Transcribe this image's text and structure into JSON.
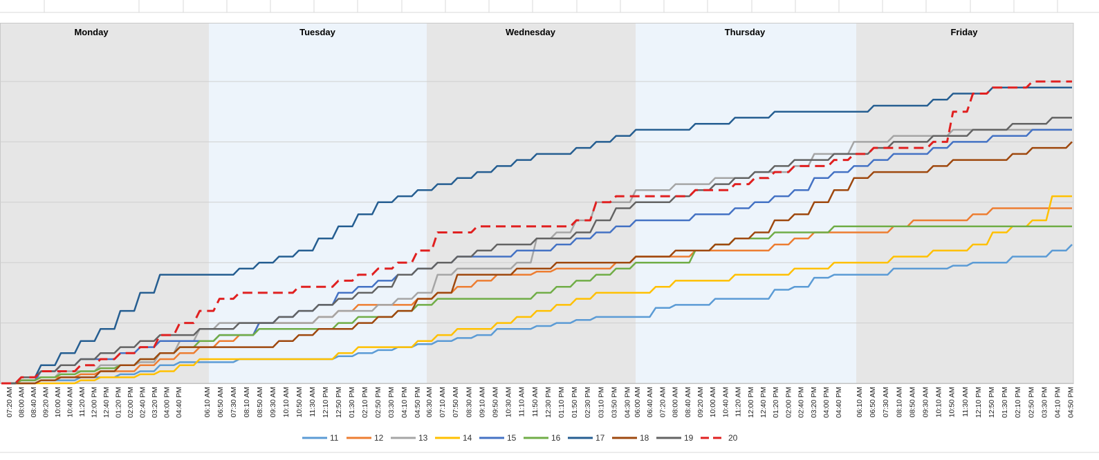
{
  "chart_data": {
    "type": "line",
    "title": "",
    "xlabel": "",
    "ylabel": "",
    "grid": true,
    "legend_position": "bottom",
    "ylim": [
      0,
      50
    ],
    "ygrid_step": 10,
    "days": [
      "Monday",
      "Tuesday",
      "Wednesday",
      "Thursday",
      "Friday"
    ],
    "day_colors": [
      "#e6e6e6",
      "#edf4fb",
      "#e6e6e6",
      "#edf4fb",
      "#e6e6e6"
    ],
    "x_ticks": [
      [
        "07:20 AM",
        "08:00 AM",
        "08:40 AM",
        "09:20 AM",
        "10:00 AM",
        "10:40 AM",
        "11:20 AM",
        "12:00 PM",
        "12:40 PM",
        "01:20 PM",
        "02:00 PM",
        "02:40 PM",
        "03:20 PM",
        "04:00 PM",
        "04:40 PM"
      ],
      [
        "06:10 AM",
        "06:50 AM",
        "07:30 AM",
        "08:10 AM",
        "08:50 AM",
        "09:30 AM",
        "10:10 AM",
        "10:50 AM",
        "11:30 AM",
        "12:10 PM",
        "12:50 PM",
        "01:30 PM",
        "02:10 PM",
        "02:50 PM",
        "03:30 PM",
        "04:10 PM",
        "04:50 PM"
      ],
      [
        "06:30 AM",
        "07:10 AM",
        "07:50 AM",
        "08:30 AM",
        "09:10 AM",
        "09:50 AM",
        "10:30 AM",
        "11:10 AM",
        "11:50 AM",
        "12:30 PM",
        "01:10 PM",
        "01:50 PM",
        "02:30 PM",
        "03:10 PM",
        "03:50 PM",
        "04:30 PM"
      ],
      [
        "06:00 AM",
        "06:40 AM",
        "07:20 AM",
        "08:00 AM",
        "08:40 AM",
        "09:20 AM",
        "10:00 AM",
        "10:40 AM",
        "11:20 AM",
        "12:00 PM",
        "12:40 PM",
        "01:20 PM",
        "02:00 PM",
        "02:40 PM",
        "03:20 PM",
        "04:00 PM",
        "04:40 PM"
      ],
      [
        "06:10 AM",
        "06:50 AM",
        "07:30 AM",
        "08:10 AM",
        "08:50 AM",
        "09:30 AM",
        "10:10 AM",
        "10:50 AM",
        "11:30 AM",
        "12:10 PM",
        "12:50 PM",
        "01:30 PM",
        "02:10 PM",
        "02:50 PM",
        "03:30 PM",
        "04:10 PM",
        "04:50 PM"
      ]
    ],
    "series": [
      {
        "name": "11",
        "color": "#5b9bd5",
        "dash": false,
        "values": [
          0,
          0,
          0.5,
          0.5,
          1,
          1,
          1.5,
          2,
          3,
          3.5,
          3.5,
          3.5,
          4,
          4,
          4,
          4,
          4,
          4.5,
          5,
          5.5,
          6,
          6.5,
          7,
          7.5,
          8,
          9,
          9,
          9.5,
          10,
          10.5,
          11,
          11,
          11,
          12.5,
          13,
          13,
          14,
          14,
          14,
          15.5,
          16,
          17.5,
          18,
          18,
          18,
          19,
          19,
          19,
          19.5,
          20,
          20,
          21,
          21,
          22,
          23
        ]
      },
      {
        "name": "12",
        "color": "#ed7d31",
        "dash": false,
        "values": [
          0,
          0.5,
          1,
          1,
          1.5,
          2,
          2,
          3,
          4,
          5,
          6,
          7,
          8,
          10,
          10,
          10,
          11,
          12,
          13,
          13,
          13,
          14,
          15,
          16,
          17,
          18,
          18,
          18.5,
          19,
          19,
          19,
          20,
          21,
          21,
          21,
          22,
          22,
          22,
          22,
          23,
          24,
          25,
          25,
          25,
          25,
          26,
          27,
          27,
          27,
          28,
          29,
          29,
          29,
          29,
          29
        ]
      },
      {
        "name": "13",
        "color": "#a5a5a5",
        "dash": false,
        "values": [
          0,
          1,
          1,
          2,
          2,
          3,
          3,
          3.5,
          5,
          7,
          9,
          10,
          10,
          10,
          10,
          10,
          11,
          12,
          12,
          13,
          14,
          15,
          18,
          19,
          19,
          19,
          20,
          24,
          25,
          27,
          30,
          30,
          32,
          32,
          33,
          33,
          34,
          34,
          35,
          35,
          36,
          38,
          38,
          40,
          40,
          41,
          41,
          41,
          42,
          42,
          42,
          42,
          42,
          42,
          42
        ]
      },
      {
        "name": "14",
        "color": "#ffc000",
        "dash": false,
        "values": [
          0,
          0,
          0,
          0,
          0.5,
          1,
          1,
          1.5,
          2,
          3,
          4,
          4,
          4,
          4,
          4,
          4,
          4,
          5,
          6,
          6,
          6,
          7,
          8,
          9,
          9,
          10,
          11,
          12,
          13,
          14,
          15,
          15,
          15,
          16,
          17,
          17,
          17,
          18,
          18,
          18,
          19,
          19,
          20,
          20,
          20,
          21,
          21,
          22,
          22,
          23,
          25,
          26,
          27,
          31,
          31
        ]
      },
      {
        "name": "15",
        "color": "#4472c4",
        "dash": false,
        "values": [
          0,
          0.5,
          2,
          3,
          4,
          4,
          5,
          6,
          7,
          7,
          7,
          8,
          8,
          10,
          11,
          12,
          13,
          15,
          16,
          17,
          18,
          19,
          20,
          21,
          21,
          21,
          22,
          22,
          23,
          24,
          25,
          26,
          27,
          27,
          27,
          28,
          28,
          29,
          30,
          31,
          32,
          34,
          35,
          36,
          37,
          38,
          38,
          39,
          40,
          40,
          41,
          41,
          42,
          42,
          42
        ]
      },
      {
        "name": "16",
        "color": "#70ad47",
        "dash": false,
        "values": [
          0,
          0.5,
          1,
          1.5,
          2,
          2.5,
          3,
          4,
          5,
          6,
          7,
          8,
          8,
          9,
          9,
          9,
          9,
          10,
          11,
          11,
          12,
          13,
          14,
          14,
          14,
          14,
          14,
          15,
          16,
          17,
          18,
          19,
          20,
          20,
          20,
          22,
          23,
          24,
          24,
          25,
          25,
          25,
          26,
          26,
          26,
          26,
          26,
          26,
          26,
          26,
          26,
          26,
          26,
          26,
          26
        ]
      },
      {
        "name": "17",
        "color": "#255e91",
        "dash": false,
        "values": [
          0,
          1,
          3,
          5,
          7,
          9,
          12,
          15,
          18,
          18,
          18,
          18,
          19,
          20,
          21,
          22,
          24,
          26,
          28,
          30,
          31,
          32,
          33,
          34,
          35,
          36,
          37,
          38,
          38,
          39,
          40,
          41,
          42,
          42,
          42,
          43,
          43,
          44,
          44,
          45,
          45,
          45,
          45,
          45,
          46,
          46,
          46,
          47,
          48,
          48,
          49,
          49,
          49,
          49,
          49
        ]
      },
      {
        "name": "18",
        "color": "#9e480e",
        "dash": false,
        "values": [
          0,
          0,
          0.5,
          1,
          1,
          2,
          3,
          4,
          5,
          6,
          6,
          6,
          6,
          6,
          7,
          8,
          9,
          9,
          10,
          11,
          12,
          14,
          15,
          18,
          18,
          18,
          19,
          19,
          20,
          20,
          20,
          20,
          21,
          21,
          22,
          22,
          23,
          24,
          25,
          27,
          28,
          30,
          32,
          34,
          35,
          35,
          35,
          36,
          37,
          37,
          37,
          38,
          39,
          39,
          40
        ]
      },
      {
        "name": "19",
        "color": "#636363",
        "dash": false,
        "values": [
          0,
          1,
          2,
          3,
          4,
          5,
          6,
          7,
          8,
          8,
          9,
          9,
          10,
          10,
          11,
          12,
          13,
          14,
          15,
          16,
          18,
          19,
          20,
          21,
          22,
          23,
          23,
          24,
          24,
          25,
          27,
          29,
          30,
          30,
          31,
          32,
          33,
          34,
          35,
          36,
          37,
          37,
          38,
          38,
          39,
          40,
          40,
          41,
          41,
          42,
          42,
          43,
          43,
          44,
          44
        ]
      },
      {
        "name": "20",
        "color": "#e02020",
        "dash": true,
        "values": [
          0,
          1,
          2,
          2,
          3,
          4,
          5,
          6,
          8,
          10,
          12,
          14,
          15,
          15,
          15,
          16,
          16,
          17,
          18,
          19,
          20,
          22,
          25,
          25,
          26,
          26,
          26,
          26,
          26,
          27,
          30,
          31,
          31,
          31,
          31,
          32,
          32,
          33,
          34,
          35,
          36,
          36,
          37,
          38,
          39,
          39,
          39,
          40,
          45,
          48,
          49,
          49,
          50,
          50,
          50
        ]
      }
    ]
  }
}
